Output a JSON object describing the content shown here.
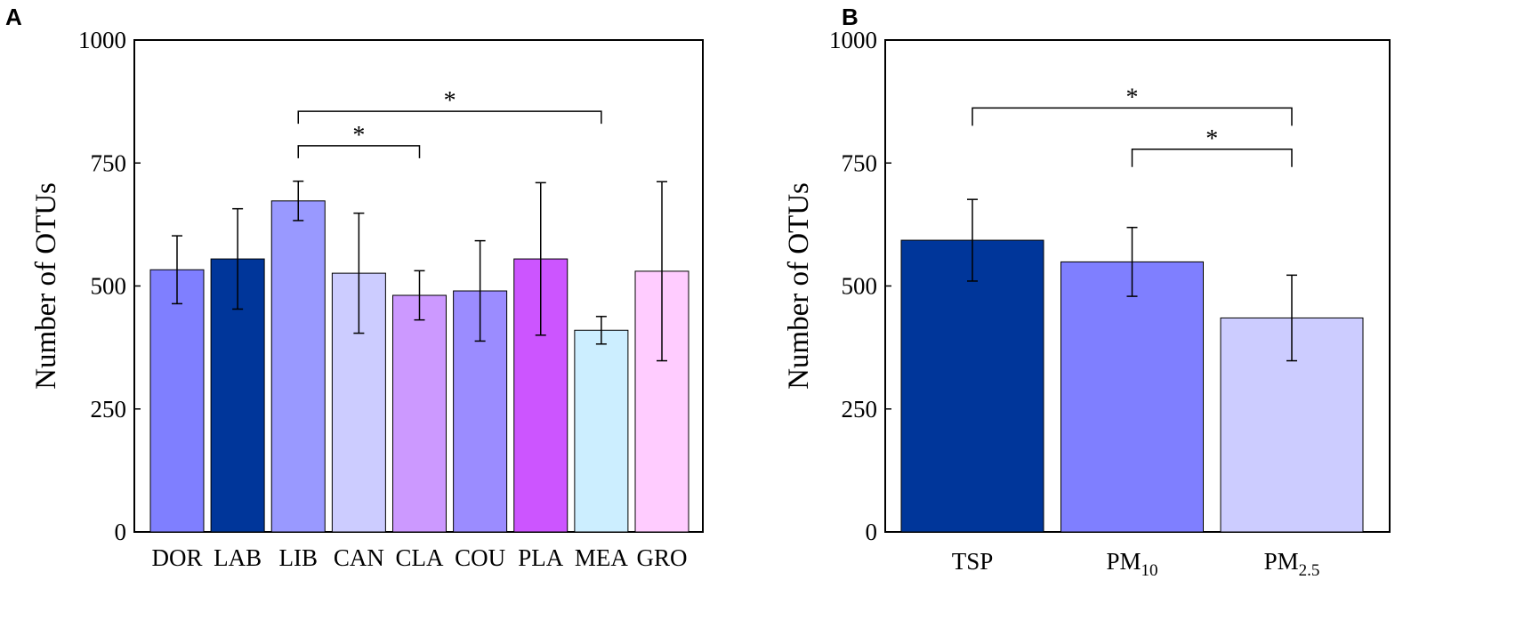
{
  "chart_data": [
    {
      "panel": "A",
      "type": "bar",
      "ylabel": "Number of OTUs",
      "ylim": [
        0,
        1000
      ],
      "yticks": [
        "0",
        "250",
        "500",
        "750",
        "1000"
      ],
      "categories": [
        "DOR",
        "LAB",
        "LIB",
        "CAN",
        "CLA",
        "COU",
        "PLA",
        "MEA",
        "GRO"
      ],
      "values": [
        533,
        555,
        673,
        526,
        481,
        490,
        555,
        410,
        530
      ],
      "errors": [
        69,
        102,
        40,
        122,
        50,
        102,
        155,
        28,
        182
      ],
      "colors": [
        "#7f7fff",
        "#00369a",
        "#9999ff",
        "#ccccff",
        "#cc99ff",
        "#9b8cff",
        "#cc55ff",
        "#cceeff",
        "#ffccff"
      ],
      "significance": [
        {
          "from": "LIB",
          "to": "MEA",
          "y": 855,
          "label": "*"
        },
        {
          "from": "LIB",
          "to": "CLA",
          "y": 785,
          "label": "*"
        }
      ]
    },
    {
      "panel": "B",
      "type": "bar",
      "ylabel": "Number of OTUs",
      "ylim": [
        0,
        1000
      ],
      "yticks": [
        "0",
        "250",
        "500",
        "750",
        "1000"
      ],
      "categories": [
        {
          "base": "TSP",
          "sub": ""
        },
        {
          "base": "PM",
          "sub": "10"
        },
        {
          "base": "PM",
          "sub": "2.5"
        }
      ],
      "values": [
        593,
        549,
        435
      ],
      "errors": [
        83,
        70,
        87
      ],
      "colors": [
        "#00369a",
        "#7f7fff",
        "#ccccff"
      ],
      "significance": [
        {
          "from": 0,
          "to": 2,
          "y": 862,
          "label": "*"
        },
        {
          "from": 1,
          "to": 2,
          "y": 778,
          "label": "*"
        }
      ]
    }
  ]
}
